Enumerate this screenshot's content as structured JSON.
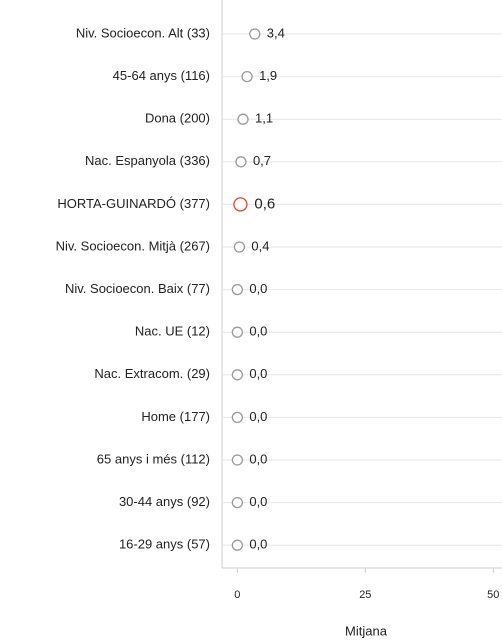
{
  "chart_data": {
    "type": "dot",
    "x_label": "Mitjana",
    "categories": [
      "Niv. Socioecon. Alt (33)",
      "45-64 anys (116)",
      "Dona (200)",
      "Nac. Espanyola (336)",
      "HORTA-GUINARDÓ (377)",
      "Niv. Socioecon. Mitjà (267)",
      "Niv. Socioecon. Baix (77)",
      "Nac. UE (12)",
      "Nac. Extracom. (29)",
      "Home (177)",
      "65 anys i més (112)",
      "30-44 anys (92)",
      "16-29 anys (57)"
    ],
    "values": [
      3.4,
      1.9,
      1.1,
      0.7,
      0.6,
      0.4,
      0,
      0,
      0,
      0,
      0,
      0,
      0
    ],
    "value_labels": [
      "3,4",
      "1,9",
      "1,1",
      "0,7",
      "0,6",
      "0,4",
      "0,0",
      "0,0",
      "0,0",
      "0,0",
      "0,0",
      "0,0",
      "0,0"
    ],
    "colors": [
      "#9a9a9a",
      "#9a9a9a",
      "#9a9a9a",
      "#9a9a9a",
      "#e2452c",
      "#9a9a9a",
      "#9a9a9a",
      "#9a9a9a",
      "#9a9a9a",
      "#9a9a9a",
      "#9a9a9a",
      "#9a9a9a",
      "#9a9a9a"
    ],
    "xlim": [
      -3,
      51.7
    ],
    "xticks": [
      0,
      25,
      50
    ],
    "grid": true
  }
}
